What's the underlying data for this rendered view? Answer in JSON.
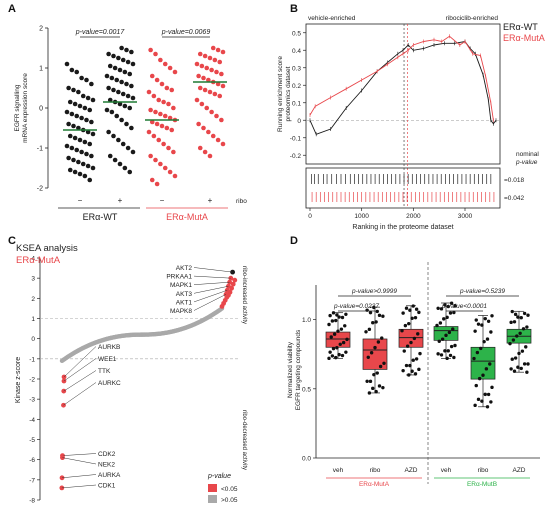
{
  "colors": {
    "black": "#1a1a1a",
    "red": "#e8474b",
    "grey": "#a9a9a9",
    "green": "#2db34a",
    "line_green": "#1f7a33"
  },
  "panel_letters": [
    "A",
    "B",
    "C",
    "D"
  ],
  "chart_data": [
    {
      "panel": "A",
      "type": "scatter",
      "ylabel_lines": [
        "EGFR signalling",
        "mRNA expression score"
      ],
      "ylim": [
        -2,
        2
      ],
      "yticks": [
        "-2",
        "-1",
        "0",
        "1",
        "2"
      ],
      "pvalues": [
        "p-value=0.0017",
        "p-value=0.0069"
      ],
      "ribo_row": {
        "label": "ribo",
        "ticks": [
          "−",
          "+",
          "−",
          "+"
        ]
      },
      "groups": [
        "ERα-WT",
        "ERα-MutA"
      ],
      "series": [
        {
          "group": "ERα-WT",
          "ribo": "−",
          "color": "black",
          "median": -0.55,
          "points": [
            1.1,
            0.95,
            0.9,
            0.75,
            0.7,
            0.6,
            0.5,
            0.45,
            0.4,
            0.3,
            0.25,
            0.2,
            0.15,
            0.1,
            0.05,
            0.0,
            -0.05,
            -0.1,
            -0.15,
            -0.2,
            -0.25,
            -0.3,
            -0.35,
            -0.4,
            -0.45,
            -0.5,
            -0.55,
            -0.6,
            -0.65,
            -0.7,
            -0.75,
            -0.8,
            -0.85,
            -0.9,
            -0.95,
            -1.0,
            -1.05,
            -1.1,
            -1.15,
            -1.2,
            -1.25,
            -1.3,
            -1.35,
            -1.4,
            -1.45,
            -1.5,
            -1.55,
            -1.6,
            -1.65,
            -1.7,
            -1.8
          ]
        },
        {
          "group": "ERα-WT",
          "ribo": "+",
          "color": "black",
          "median": 0.15,
          "points": [
            1.5,
            1.45,
            1.4,
            1.35,
            1.3,
            1.25,
            1.2,
            1.15,
            1.1,
            1.05,
            1.0,
            0.95,
            0.9,
            0.85,
            0.8,
            0.75,
            0.7,
            0.65,
            0.6,
            0.55,
            0.5,
            0.45,
            0.4,
            0.35,
            0.3,
            0.25,
            0.2,
            0.15,
            0.1,
            0.05,
            0.0,
            -0.05,
            -0.1,
            -0.2,
            -0.3,
            -0.4,
            -0.5,
            -0.6,
            -0.7,
            -0.8,
            -0.9,
            -1.0,
            -1.1,
            -1.2,
            -1.3,
            -1.4,
            -1.5,
            -1.6
          ]
        },
        {
          "group": "ERα-MutA",
          "ribo": "−",
          "color": "red",
          "median": -0.3,
          "points": [
            1.45,
            1.35,
            1.2,
            1.1,
            1.0,
            0.9,
            0.8,
            0.7,
            0.6,
            0.5,
            0.45,
            0.4,
            0.3,
            0.2,
            0.15,
            0.1,
            0.0,
            -0.05,
            -0.1,
            -0.15,
            -0.2,
            -0.25,
            -0.3,
            -0.35,
            -0.4,
            -0.45,
            -0.5,
            -0.55,
            -0.6,
            -0.7,
            -0.8,
            -0.9,
            -1.0,
            -1.1,
            -1.2,
            -1.3,
            -1.4,
            -1.5,
            -1.6,
            -1.7,
            -1.8,
            -1.9
          ]
        },
        {
          "group": "ERα-MutA",
          "ribo": "+",
          "color": "red",
          "median": 0.65,
          "points": [
            1.5,
            1.45,
            1.4,
            1.35,
            1.3,
            1.25,
            1.2,
            1.15,
            1.1,
            1.05,
            1.0,
            0.95,
            0.9,
            0.85,
            0.8,
            0.75,
            0.7,
            0.65,
            0.6,
            0.55,
            0.5,
            0.45,
            0.4,
            0.35,
            0.3,
            0.2,
            0.1,
            0.0,
            -0.1,
            -0.2,
            -0.3,
            -0.4,
            -0.5,
            -0.6,
            -0.7,
            -0.8,
            -0.9,
            -1.0,
            -1.1,
            -1.2
          ]
        }
      ]
    },
    {
      "panel": "B",
      "type": "line",
      "top_labels": [
        "vehicle-enriched",
        "ribociclib-enriched"
      ],
      "ylabel_lines": [
        "Running enrichment score",
        "proteomics dataset"
      ],
      "xlabel": "Ranking in the proteome dataset",
      "xlim": [
        0,
        3600
      ],
      "xticks": [
        "0",
        "1000",
        "2000",
        "3000"
      ],
      "ylim": [
        -0.25,
        0.55
      ],
      "yticks": [
        "-0.2",
        "-0.1",
        "0",
        "0.1",
        "0.2",
        "0.3",
        "0.4",
        "0.5"
      ],
      "legend": [
        "ERα-WT",
        "ERα-MutA"
      ],
      "nominal_label_lines": [
        "nominal",
        "p-value"
      ],
      "rug_pvalues": [
        "=0.018",
        "=0.042"
      ],
      "vlines_x": [
        1820,
        1890
      ],
      "series": [
        {
          "name": "ERα-WT",
          "color": "black",
          "x": [
            0,
            120,
            400,
            700,
            1000,
            1300,
            1500,
            1700,
            1800,
            1900,
            2000,
            2200,
            2400,
            2600,
            2800,
            3000,
            3100,
            3200,
            3350,
            3450,
            3500,
            3550,
            3600
          ],
          "y": [
            0.0,
            -0.08,
            -0.05,
            0.07,
            0.17,
            0.28,
            0.33,
            0.38,
            0.4,
            0.43,
            0.4,
            0.41,
            0.43,
            0.44,
            0.44,
            0.45,
            0.41,
            0.38,
            0.26,
            0.12,
            0.0,
            -0.02,
            0.0
          ]
        },
        {
          "name": "ERα-MutA",
          "color": "red",
          "x": [
            0,
            100,
            400,
            700,
            1000,
            1300,
            1500,
            1700,
            1800,
            1900,
            2000,
            2200,
            2400,
            2550,
            2700,
            2900,
            3000,
            3150,
            3300,
            3400,
            3500,
            3550
          ],
          "y": [
            0.03,
            0.08,
            0.13,
            0.18,
            0.23,
            0.28,
            0.32,
            0.36,
            0.38,
            0.4,
            0.43,
            0.45,
            0.46,
            0.45,
            0.48,
            0.43,
            0.45,
            0.38,
            0.37,
            0.25,
            0.1,
            0.0
          ]
        }
      ],
      "rug_black_x": [
        30,
        90,
        160,
        260,
        330,
        420,
        510,
        600,
        690,
        780,
        860,
        940,
        1020,
        1100,
        1180,
        1260,
        1340,
        1420,
        1500,
        1580,
        1660,
        1740,
        1820,
        1900,
        1980,
        2060,
        2140,
        2220,
        2300,
        2380,
        2460,
        2540,
        2620,
        2700,
        2780,
        2860,
        2940,
        3020,
        3100,
        3180,
        3260,
        3340,
        3420,
        3500
      ],
      "rug_red_x": [
        40,
        120,
        200,
        280,
        360,
        440,
        520,
        600,
        680,
        760,
        840,
        920,
        1000,
        1080,
        1160,
        1240,
        1320,
        1400,
        1480,
        1560,
        1640,
        1720,
        1800,
        1880,
        1960,
        2040,
        2120,
        2200,
        2280,
        2360,
        2440,
        2520,
        2600,
        2680,
        2760,
        2840,
        2920,
        3000,
        3080,
        3160,
        3240,
        3320,
        3400,
        3480,
        3560
      ]
    },
    {
      "panel": "C",
      "type": "scatter",
      "title": "KSEA analysis",
      "subtitle": "ERα-MutA",
      "ylabel": "Kinase z-score",
      "ylim": [
        -8,
        4
      ],
      "yticks": [
        "-8",
        "-7",
        "-6",
        "-5",
        "-4",
        "-3",
        "-2",
        "-1",
        "0",
        "1",
        "2",
        "3",
        "4"
      ],
      "hlines_y": [
        1,
        -1
      ],
      "side_labels": [
        "ribo-increased activity",
        "ribo-decreased activity"
      ],
      "legend_title": "p-value",
      "legend": [
        {
          "label": "<0.05",
          "color": "red"
        },
        {
          "label": ">0.05",
          "color": "grey"
        }
      ],
      "annotations": [
        {
          "label": "AKT2",
          "y": 3.3
        },
        {
          "label": "PRKAA1",
          "y": 3.0
        },
        {
          "label": "MAPK1",
          "y": 2.8
        },
        {
          "label": "AKT3",
          "y": 2.6
        },
        {
          "label": "AKT1",
          "y": 2.4
        },
        {
          "label": "MAPK8",
          "y": 2.2
        },
        {
          "label": "AURKB",
          "y": -1.9
        },
        {
          "label": "WEE1",
          "y": -2.1
        },
        {
          "label": "TTK",
          "y": -2.6
        },
        {
          "label": "AURKC",
          "y": -3.3
        },
        {
          "label": "CDK2",
          "y": -5.8
        },
        {
          "label": "NEK2",
          "y": -5.9
        },
        {
          "label": "AURKA",
          "y": -6.9
        },
        {
          "label": "CDK1",
          "y": -7.4
        }
      ],
      "n_kinases": 200,
      "z_range": [
        -1.1,
        1.5
      ]
    },
    {
      "panel": "D",
      "type": "box",
      "ylabel_lines": [
        "Normalized viability",
        "EGFR targeting compounds"
      ],
      "ylim": [
        0,
        1.25
      ],
      "yticks": [
        "0.0",
        "0.5",
        "1.0"
      ],
      "pvalues": [
        "p-value>0.9999",
        "p-value=0.0237",
        "p-value<0.0001",
        "p-value=0.5239"
      ],
      "groups": [
        "ERα-MutA",
        "ERα-MutB"
      ],
      "categories": [
        "veh",
        "ribo",
        "AZD",
        "veh",
        "ribo",
        "AZD"
      ],
      "boxes": [
        {
          "group": "ERα-MutA",
          "label": "veh",
          "color": "red",
          "min": 0.72,
          "q1": 0.8,
          "median": 0.86,
          "q3": 0.91,
          "max": 1.05
        },
        {
          "group": "ERα-MutA",
          "label": "ribo",
          "color": "red",
          "min": 0.47,
          "q1": 0.64,
          "median": 0.78,
          "q3": 0.86,
          "max": 1.09
        },
        {
          "group": "ERα-MutA",
          "label": "AZD",
          "color": "red",
          "min": 0.6,
          "q1": 0.8,
          "median": 0.87,
          "q3": 0.93,
          "max": 1.1
        },
        {
          "group": "ERα-MutB",
          "label": "veh",
          "color": "green",
          "min": 0.72,
          "q1": 0.85,
          "median": 0.92,
          "q3": 0.95,
          "max": 1.12
        },
        {
          "group": "ERα-MutB",
          "label": "ribo",
          "color": "green",
          "min": 0.37,
          "q1": 0.57,
          "median": 0.7,
          "q3": 0.8,
          "max": 1.03
        },
        {
          "group": "ERα-MutB",
          "label": "AZD",
          "color": "green",
          "min": 0.62,
          "q1": 0.83,
          "median": 0.88,
          "q3": 0.93,
          "max": 1.06
        }
      ]
    }
  ]
}
